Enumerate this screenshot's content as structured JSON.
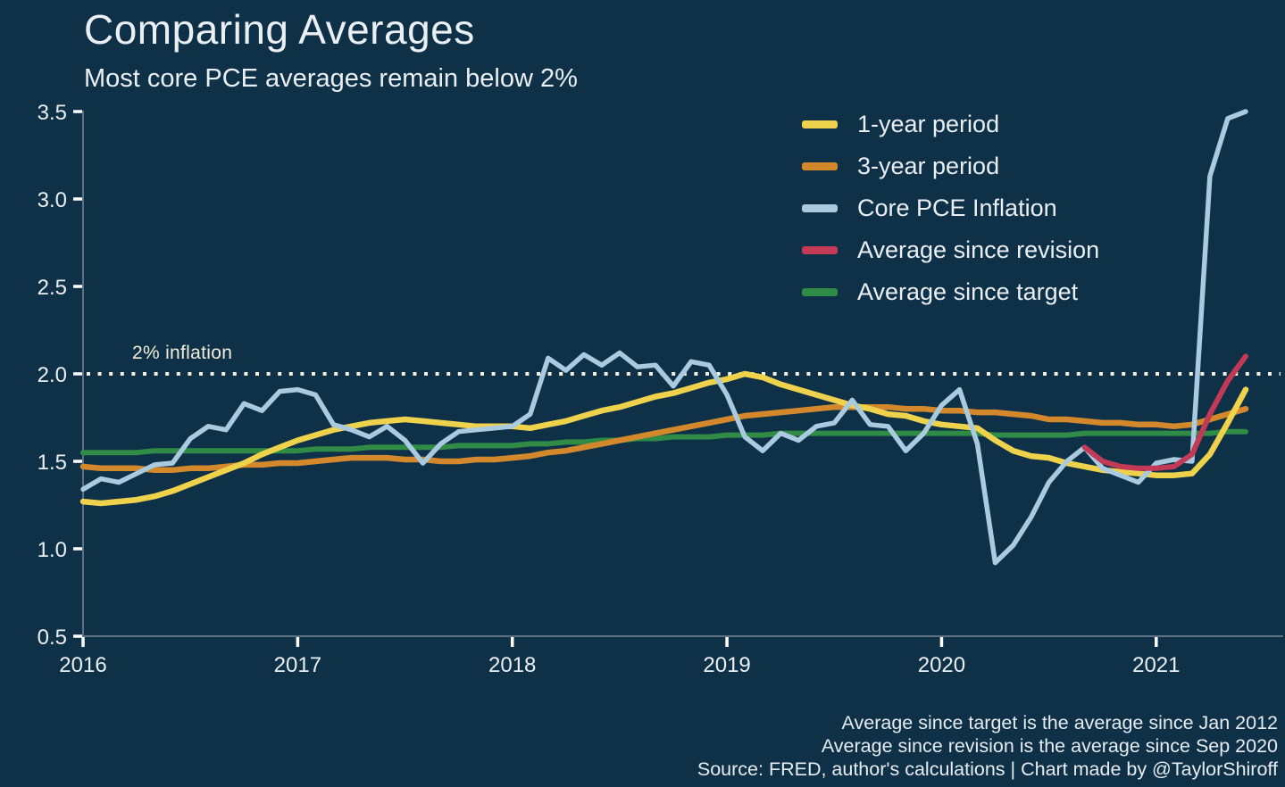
{
  "footer": {
    "lines": [
      "Average since target is the average since Jan 2012",
      "Average since revision is the average since Sep 2020",
      "Source: FRED, author's calculations | Chart made by @TaylorShiroff"
    ]
  },
  "colors": {
    "background": "#0e3148",
    "text": "#e9eff2",
    "axis": "#5c7282",
    "tick_mark": "#ffffff",
    "one_year": "#efd24c",
    "three_year": "#d3892b",
    "core_pce": "#a9cadf",
    "since_revision": "#c23a55",
    "since_target": "#2f8b45"
  },
  "chart_data": {
    "type": "line",
    "title": "Comparing Averages",
    "subtitle": "Most core PCE averages remain below 2%",
    "xlabel": "",
    "ylabel": "",
    "ylim": [
      0.5,
      3.5
    ],
    "x_start": "2016-01",
    "x_end": "2021-06",
    "grid": false,
    "legend_position": "top-right",
    "y_ticks": [
      {
        "value": 0.5,
        "label": "0.5"
      },
      {
        "value": 1.0,
        "label": "1.0"
      },
      {
        "value": 1.5,
        "label": "1.5"
      },
      {
        "value": 2.0,
        "label": "2.0"
      },
      {
        "value": 2.5,
        "label": "2.5"
      },
      {
        "value": 3.0,
        "label": "3.0"
      },
      {
        "value": 3.5,
        "label": "3.5"
      }
    ],
    "x_ticks": [
      {
        "month": 0,
        "label": "2016"
      },
      {
        "month": 12,
        "label": "2017"
      },
      {
        "month": 24,
        "label": "2018"
      },
      {
        "month": 36,
        "label": "2019"
      },
      {
        "month": 48,
        "label": "2020"
      },
      {
        "month": 60,
        "label": "2021"
      }
    ],
    "reference_line": {
      "value": 2.0,
      "label": "2% inflation",
      "color": "#f5f2e4",
      "style": "dotted"
    },
    "draw_order": [
      "Average since target",
      "3-year period",
      "1-year period",
      "Core PCE Inflation",
      "Average since revision"
    ],
    "series": [
      {
        "name": "1-year period",
        "color": "#efd24c",
        "stroke_width": 6.5,
        "start_month": 0,
        "values": [
          1.27,
          1.26,
          1.27,
          1.28,
          1.3,
          1.33,
          1.37,
          1.41,
          1.45,
          1.49,
          1.54,
          1.58,
          1.62,
          1.65,
          1.68,
          1.7,
          1.72,
          1.73,
          1.74,
          1.73,
          1.72,
          1.71,
          1.7,
          1.7,
          1.7,
          1.69,
          1.71,
          1.73,
          1.76,
          1.79,
          1.81,
          1.84,
          1.87,
          1.89,
          1.92,
          1.95,
          1.97,
          2.0,
          1.98,
          1.94,
          1.91,
          1.88,
          1.85,
          1.82,
          1.8,
          1.77,
          1.76,
          1.73,
          1.71,
          1.7,
          1.69,
          1.62,
          1.56,
          1.53,
          1.52,
          1.49,
          1.47,
          1.45,
          1.44,
          1.43,
          1.42,
          1.42,
          1.43,
          1.54,
          1.72,
          1.91
        ]
      },
      {
        "name": "3-year period",
        "color": "#d3892b",
        "stroke_width": 6.5,
        "start_month": 0,
        "values": [
          1.47,
          1.46,
          1.46,
          1.46,
          1.45,
          1.45,
          1.46,
          1.46,
          1.47,
          1.48,
          1.48,
          1.49,
          1.49,
          1.5,
          1.51,
          1.52,
          1.52,
          1.52,
          1.51,
          1.51,
          1.5,
          1.5,
          1.51,
          1.51,
          1.52,
          1.53,
          1.55,
          1.56,
          1.58,
          1.6,
          1.62,
          1.64,
          1.66,
          1.68,
          1.7,
          1.72,
          1.74,
          1.76,
          1.77,
          1.78,
          1.79,
          1.8,
          1.81,
          1.81,
          1.81,
          1.81,
          1.8,
          1.8,
          1.79,
          1.79,
          1.78,
          1.78,
          1.77,
          1.76,
          1.74,
          1.74,
          1.73,
          1.72,
          1.72,
          1.71,
          1.71,
          1.7,
          1.71,
          1.74,
          1.77,
          1.8
        ]
      },
      {
        "name": "Core PCE Inflation",
        "color": "#a9cadf",
        "stroke_width": 5.5,
        "start_month": 0,
        "values": [
          1.34,
          1.4,
          1.38,
          1.43,
          1.48,
          1.49,
          1.63,
          1.7,
          1.68,
          1.83,
          1.79,
          1.9,
          1.91,
          1.88,
          1.71,
          1.68,
          1.64,
          1.7,
          1.62,
          1.49,
          1.6,
          1.67,
          1.68,
          1.69,
          1.7,
          1.77,
          2.09,
          2.02,
          2.11,
          2.05,
          2.12,
          2.04,
          2.05,
          1.93,
          2.07,
          2.05,
          1.88,
          1.64,
          1.56,
          1.66,
          1.62,
          1.7,
          1.72,
          1.85,
          1.71,
          1.7,
          1.56,
          1.66,
          1.82,
          1.91,
          1.6,
          0.92,
          1.02,
          1.18,
          1.38,
          1.5,
          1.58,
          1.46,
          1.42,
          1.38,
          1.49,
          1.51,
          1.5,
          3.13,
          3.46,
          3.5
        ]
      },
      {
        "name": "Average since revision",
        "color": "#c23a55",
        "stroke_width": 6,
        "start_month": 56,
        "values": [
          1.58,
          1.5,
          1.47,
          1.46,
          1.46,
          1.47,
          1.54,
          1.77,
          1.96,
          2.1
        ]
      },
      {
        "name": "Average since target",
        "color": "#2f8b45",
        "stroke_width": 6,
        "start_month": 0,
        "values": [
          1.55,
          1.55,
          1.55,
          1.55,
          1.56,
          1.56,
          1.56,
          1.56,
          1.56,
          1.56,
          1.56,
          1.56,
          1.56,
          1.57,
          1.57,
          1.57,
          1.58,
          1.58,
          1.58,
          1.58,
          1.58,
          1.59,
          1.59,
          1.59,
          1.59,
          1.6,
          1.6,
          1.61,
          1.61,
          1.62,
          1.62,
          1.63,
          1.63,
          1.64,
          1.64,
          1.64,
          1.65,
          1.65,
          1.65,
          1.66,
          1.66,
          1.66,
          1.66,
          1.66,
          1.66,
          1.66,
          1.66,
          1.66,
          1.66,
          1.66,
          1.66,
          1.65,
          1.65,
          1.65,
          1.65,
          1.65,
          1.66,
          1.66,
          1.66,
          1.66,
          1.66,
          1.66,
          1.66,
          1.66,
          1.67,
          1.67
        ]
      }
    ]
  }
}
